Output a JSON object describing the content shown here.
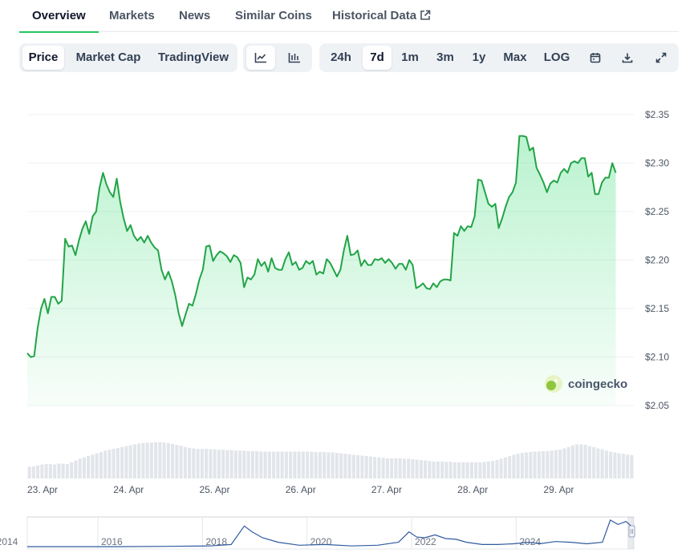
{
  "tabs": [
    {
      "label": "Overview",
      "active": true
    },
    {
      "label": "Markets",
      "active": false
    },
    {
      "label": "News",
      "active": false
    },
    {
      "label": "Similar Coins",
      "active": false
    },
    {
      "label": "Historical Data",
      "active": false,
      "icon": "external-link-icon"
    }
  ],
  "chart_mode": [
    {
      "label": "Price",
      "active": true
    },
    {
      "label": "Market Cap",
      "active": false
    },
    {
      "label": "TradingView",
      "active": false
    }
  ],
  "chart_style": [
    {
      "icon": "line-chart-icon",
      "active": true
    },
    {
      "icon": "candlestick-chart-icon",
      "active": false
    }
  ],
  "range": [
    {
      "label": "24h",
      "active": false
    },
    {
      "label": "7d",
      "active": true
    },
    {
      "label": "1m",
      "active": false
    },
    {
      "label": "3m",
      "active": false
    },
    {
      "label": "1y",
      "active": false
    },
    {
      "label": "Max",
      "active": false
    },
    {
      "label": "LOG",
      "active": false
    }
  ],
  "tools": [
    {
      "icon": "calendar-icon"
    },
    {
      "icon": "download-icon"
    },
    {
      "icon": "fullscreen-icon"
    }
  ],
  "colors": {
    "line": "#22a447",
    "fill": "#4ade80",
    "volume": "#e2e5ea",
    "navigator": "#2f5b9f"
  },
  "watermark": "coingecko",
  "chart_data": {
    "type": "area",
    "y_ticks": [
      "$2.35",
      "$2.30",
      "$2.25",
      "$2.20",
      "$2.15",
      "$2.10",
      "$2.05"
    ],
    "ylim": [
      2.05,
      2.35
    ],
    "x_ticks": [
      "23. Apr",
      "24. Apr",
      "25. Apr",
      "26. Apr",
      "27. Apr",
      "28. Apr",
      "29. Apr"
    ],
    "x_range_days": [
      0,
      7.05
    ],
    "price": [
      [
        0.0,
        2.104
      ],
      [
        0.04,
        2.1
      ],
      [
        0.08,
        2.101
      ],
      [
        0.12,
        2.13
      ],
      [
        0.16,
        2.15
      ],
      [
        0.2,
        2.16
      ],
      [
        0.24,
        2.145
      ],
      [
        0.28,
        2.162
      ],
      [
        0.32,
        2.162
      ],
      [
        0.36,
        2.155
      ],
      [
        0.4,
        2.158
      ],
      [
        0.44,
        2.222
      ],
      [
        0.48,
        2.214
      ],
      [
        0.52,
        2.215
      ],
      [
        0.56,
        2.205
      ],
      [
        0.6,
        2.22
      ],
      [
        0.64,
        2.232
      ],
      [
        0.68,
        2.24
      ],
      [
        0.72,
        2.227
      ],
      [
        0.76,
        2.245
      ],
      [
        0.8,
        2.25
      ],
      [
        0.84,
        2.275
      ],
      [
        0.88,
        2.29
      ],
      [
        0.92,
        2.278
      ],
      [
        0.96,
        2.27
      ],
      [
        1.0,
        2.265
      ],
      [
        1.04,
        2.284
      ],
      [
        1.08,
        2.26
      ],
      [
        1.12,
        2.243
      ],
      [
        1.16,
        2.23
      ],
      [
        1.2,
        2.236
      ],
      [
        1.24,
        2.225
      ],
      [
        1.28,
        2.22
      ],
      [
        1.32,
        2.224
      ],
      [
        1.36,
        2.218
      ],
      [
        1.4,
        2.225
      ],
      [
        1.44,
        2.218
      ],
      [
        1.48,
        2.213
      ],
      [
        1.52,
        2.21
      ],
      [
        1.56,
        2.19
      ],
      [
        1.6,
        2.18
      ],
      [
        1.64,
        2.188
      ],
      [
        1.68,
        2.178
      ],
      [
        1.72,
        2.164
      ],
      [
        1.76,
        2.145
      ],
      [
        1.8,
        2.132
      ],
      [
        1.84,
        2.144
      ],
      [
        1.88,
        2.155
      ],
      [
        1.92,
        2.153
      ],
      [
        1.96,
        2.165
      ],
      [
        2.0,
        2.18
      ],
      [
        2.04,
        2.19
      ],
      [
        2.08,
        2.214
      ],
      [
        2.12,
        2.215
      ],
      [
        2.16,
        2.199
      ],
      [
        2.2,
        2.205
      ],
      [
        2.24,
        2.209
      ],
      [
        2.28,
        2.207
      ],
      [
        2.32,
        2.204
      ],
      [
        2.36,
        2.198
      ],
      [
        2.4,
        2.205
      ],
      [
        2.44,
        2.203
      ],
      [
        2.48,
        2.197
      ],
      [
        2.52,
        2.172
      ],
      [
        2.56,
        2.182
      ],
      [
        2.6,
        2.18
      ],
      [
        2.64,
        2.185
      ],
      [
        2.68,
        2.201
      ],
      [
        2.72,
        2.194
      ],
      [
        2.76,
        2.198
      ],
      [
        2.8,
        2.188
      ],
      [
        2.84,
        2.202
      ],
      [
        2.88,
        2.192
      ],
      [
        2.92,
        2.19
      ],
      [
        2.96,
        2.19
      ],
      [
        3.0,
        2.201
      ],
      [
        3.04,
        2.208
      ],
      [
        3.08,
        2.195
      ],
      [
        3.12,
        2.198
      ],
      [
        3.16,
        2.19
      ],
      [
        3.2,
        2.192
      ],
      [
        3.24,
        2.199
      ],
      [
        3.28,
        2.196
      ],
      [
        3.32,
        2.199
      ],
      [
        3.36,
        2.185
      ],
      [
        3.4,
        2.188
      ],
      [
        3.44,
        2.186
      ],
      [
        3.48,
        2.201
      ],
      [
        3.52,
        2.197
      ],
      [
        3.56,
        2.19
      ],
      [
        3.6,
        2.183
      ],
      [
        3.64,
        2.19
      ],
      [
        3.68,
        2.21
      ],
      [
        3.72,
        2.225
      ],
      [
        3.76,
        2.205
      ],
      [
        3.8,
        2.206
      ],
      [
        3.84,
        2.21
      ],
      [
        3.88,
        2.194
      ],
      [
        3.92,
        2.2
      ],
      [
        3.96,
        2.195
      ],
      [
        4.0,
        2.195
      ],
      [
        4.04,
        2.201
      ],
      [
        4.08,
        2.2
      ],
      [
        4.12,
        2.202
      ],
      [
        4.16,
        2.197
      ],
      [
        4.2,
        2.201
      ],
      [
        4.24,
        2.197
      ],
      [
        4.28,
        2.191
      ],
      [
        4.32,
        2.196
      ],
      [
        4.36,
        2.196
      ],
      [
        4.4,
        2.19
      ],
      [
        4.44,
        2.2
      ],
      [
        4.48,
        2.195
      ],
      [
        4.52,
        2.171
      ],
      [
        4.56,
        2.173
      ],
      [
        4.6,
        2.176
      ],
      [
        4.64,
        2.171
      ],
      [
        4.68,
        2.17
      ],
      [
        4.72,
        2.176
      ],
      [
        4.76,
        2.172
      ],
      [
        4.8,
        2.178
      ],
      [
        4.84,
        2.18
      ],
      [
        4.88,
        2.18
      ],
      [
        4.92,
        2.179
      ],
      [
        4.96,
        2.228
      ],
      [
        5.0,
        2.225
      ],
      [
        5.04,
        2.235
      ],
      [
        5.08,
        2.23
      ],
      [
        5.12,
        2.235
      ],
      [
        5.16,
        2.234
      ],
      [
        5.2,
        2.245
      ],
      [
        5.24,
        2.283
      ],
      [
        5.28,
        2.282
      ],
      [
        5.32,
        2.27
      ],
      [
        5.36,
        2.258
      ],
      [
        5.4,
        2.255
      ],
      [
        5.44,
        2.258
      ],
      [
        5.48,
        2.233
      ],
      [
        5.52,
        2.243
      ],
      [
        5.56,
        2.255
      ],
      [
        5.6,
        2.265
      ],
      [
        5.64,
        2.27
      ],
      [
        5.68,
        2.28
      ],
      [
        5.72,
        2.328
      ],
      [
        5.76,
        2.328
      ],
      [
        5.8,
        2.327
      ],
      [
        5.84,
        2.313
      ],
      [
        5.88,
        2.316
      ],
      [
        5.92,
        2.295
      ],
      [
        5.96,
        2.288
      ],
      [
        6.0,
        2.28
      ],
      [
        6.04,
        2.27
      ],
      [
        6.08,
        2.279
      ],
      [
        6.12,
        2.282
      ],
      [
        6.16,
        2.28
      ],
      [
        6.2,
        2.29
      ],
      [
        6.24,
        2.294
      ],
      [
        6.28,
        2.29
      ],
      [
        6.32,
        2.3
      ],
      [
        6.36,
        2.302
      ],
      [
        6.4,
        2.3
      ],
      [
        6.44,
        2.305
      ],
      [
        6.48,
        2.305
      ],
      [
        6.52,
        2.286
      ],
      [
        6.56,
        2.29
      ],
      [
        6.6,
        2.268
      ],
      [
        6.64,
        2.268
      ],
      [
        6.68,
        2.28
      ],
      [
        6.72,
        2.285
      ],
      [
        6.76,
        2.285
      ],
      [
        6.8,
        2.3
      ],
      [
        6.84,
        2.29
      ]
    ],
    "volume_relative": [
      0.26,
      0.27,
      0.29,
      0.31,
      0.32,
      0.32,
      0.31,
      0.33,
      0.33,
      0.32,
      0.36,
      0.4,
      0.44,
      0.47,
      0.5,
      0.53,
      0.56,
      0.59,
      0.62,
      0.64,
      0.66,
      0.68,
      0.7,
      0.72,
      0.74,
      0.76,
      0.78,
      0.79,
      0.8,
      0.8,
      0.81,
      0.81,
      0.8,
      0.79,
      0.77,
      0.75,
      0.73,
      0.7,
      0.68,
      0.67,
      0.66,
      0.66,
      0.66,
      0.65,
      0.65,
      0.64,
      0.64,
      0.63,
      0.63,
      0.62,
      0.62,
      0.62,
      0.61,
      0.61,
      0.61,
      0.6,
      0.6,
      0.6,
      0.6,
      0.6,
      0.6,
      0.6,
      0.6,
      0.6,
      0.6,
      0.6,
      0.6,
      0.6,
      0.59,
      0.59,
      0.59,
      0.58,
      0.58,
      0.57,
      0.56,
      0.55,
      0.54,
      0.53,
      0.52,
      0.51,
      0.5,
      0.49,
      0.48,
      0.47,
      0.46,
      0.45,
      0.45,
      0.45,
      0.45,
      0.44,
      0.44,
      0.43,
      0.42,
      0.41,
      0.4,
      0.39,
      0.38,
      0.38,
      0.38,
      0.37,
      0.37,
      0.36,
      0.36,
      0.36,
      0.36,
      0.36,
      0.36,
      0.36,
      0.37,
      0.38,
      0.39,
      0.41,
      0.44,
      0.47,
      0.5,
      0.53,
      0.55,
      0.57,
      0.58,
      0.59,
      0.6,
      0.6,
      0.61,
      0.61,
      0.62,
      0.63,
      0.64,
      0.67,
      0.7,
      0.74,
      0.76,
      0.76,
      0.75,
      0.72,
      0.7,
      0.67,
      0.65,
      0.62,
      0.6,
      0.58,
      0.56,
      0.55,
      0.53,
      0.52
    ],
    "navigator": {
      "x_ticks": [
        "2014",
        "2016",
        "2018",
        "2020",
        "2022",
        "2024"
      ],
      "x_range_years": [
        2013.8,
        2025.4
      ],
      "points": [
        [
          2013.8,
          2
        ],
        [
          2014.5,
          2
        ],
        [
          2015.5,
          2
        ],
        [
          2016.5,
          2.5
        ],
        [
          2017.3,
          3
        ],
        [
          2017.7,
          5
        ],
        [
          2017.95,
          30
        ],
        [
          2018.1,
          22
        ],
        [
          2018.3,
          14
        ],
        [
          2018.6,
          8
        ],
        [
          2019.0,
          4
        ],
        [
          2019.5,
          5
        ],
        [
          2020.0,
          3
        ],
        [
          2020.5,
          4
        ],
        [
          2020.9,
          8
        ],
        [
          2021.1,
          22
        ],
        [
          2021.25,
          15
        ],
        [
          2021.4,
          14
        ],
        [
          2021.6,
          18
        ],
        [
          2021.8,
          13
        ],
        [
          2022.0,
          12
        ],
        [
          2022.2,
          8
        ],
        [
          2022.5,
          5
        ],
        [
          2022.8,
          5
        ],
        [
          2023.1,
          6
        ],
        [
          2023.4,
          8
        ],
        [
          2023.6,
          6
        ],
        [
          2023.9,
          9
        ],
        [
          2024.2,
          8
        ],
        [
          2024.5,
          6
        ],
        [
          2024.8,
          8
        ],
        [
          2024.95,
          38
        ],
        [
          2025.1,
          32
        ],
        [
          2025.25,
          36
        ],
        [
          2025.35,
          30
        ]
      ],
      "ymax": 40
    }
  }
}
